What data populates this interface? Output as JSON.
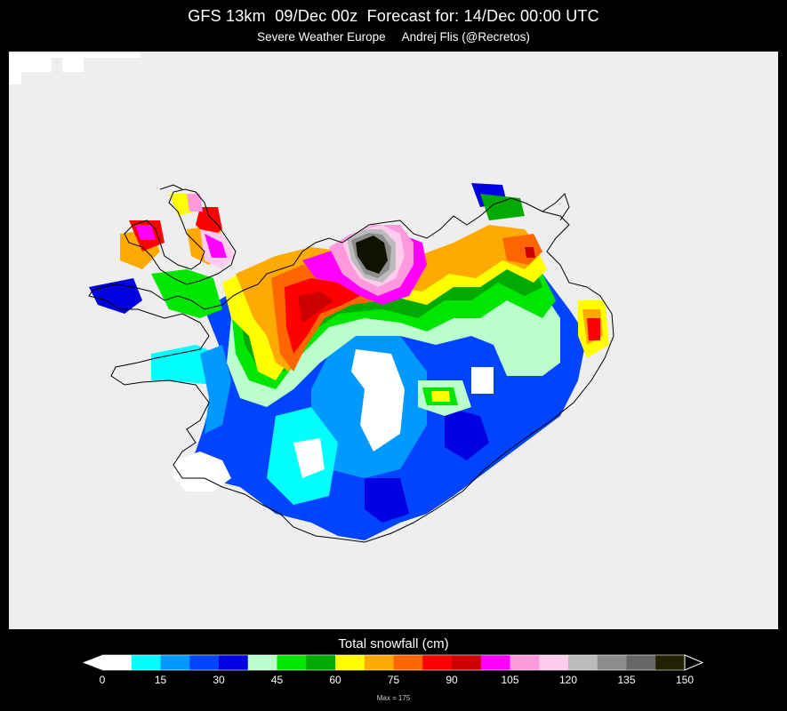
{
  "header": {
    "title": "GFS 13km  09/Dec 00z  Forecast for: 14/Dec 00:00 UTC",
    "subtitle": "Severe Weather Europe     Andrej Flis (@Recretos)"
  },
  "map": {
    "region": "Iceland",
    "background_color": "#eeeeee",
    "coastline_color": "#000000",
    "field_colors": {
      "white": "#ffffff",
      "cyan": "#00ffff",
      "sky": "#0099ff",
      "blue": "#0044ff",
      "navy": "#0000e0",
      "mint": "#bbffcc",
      "green": "#00e600",
      "dkgreen": "#00aa00",
      "yellow": "#ffff00",
      "orange": "#ffaa00",
      "dkorange": "#ff6600",
      "red": "#ff0000",
      "crimson": "#cc0000",
      "magenta": "#ff00ff",
      "pink": "#ff99dd",
      "lightpink": "#ffccee",
      "silver": "#bbbbbb",
      "grey": "#8c8c8c",
      "dkgrey": "#666666",
      "black": "#111100"
    }
  },
  "legend": {
    "title": "Total snowfall (cm)",
    "units": "cm",
    "colors": [
      "#ffffff",
      "#00ffff",
      "#0099ff",
      "#0044ff",
      "#0000e0",
      "#bbffcc",
      "#00e600",
      "#00aa00",
      "#ffff00",
      "#ffaa00",
      "#ff6600",
      "#ff0000",
      "#cc0000",
      "#ff00ff",
      "#ff99dd",
      "#ffccee",
      "#bbbbbb",
      "#8c8c8c",
      "#666666",
      "#222200"
    ],
    "tick_labels": [
      "0",
      "15",
      "30",
      "45",
      "60",
      "75",
      "90",
      "105",
      "120",
      "135",
      "150"
    ],
    "min": 0,
    "max": 150,
    "step": 7.5,
    "max_note": "Max = 175"
  }
}
